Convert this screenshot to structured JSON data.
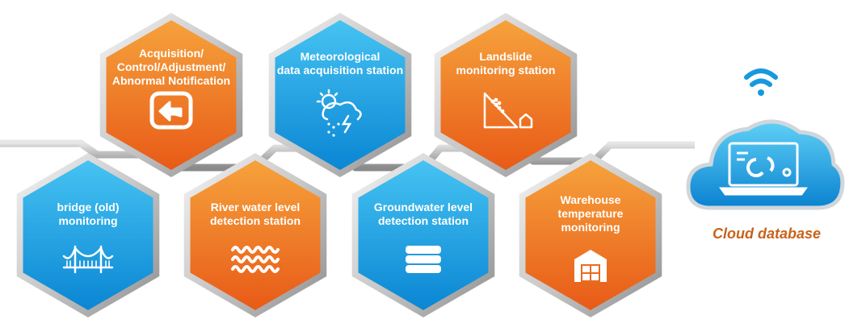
{
  "nodes": [
    {
      "id": "acquisition",
      "lines": [
        "Acquisition/",
        "Control/Adjustment/",
        "Abnormal Notification"
      ],
      "icon": "return-arrow-icon",
      "color": "orange"
    },
    {
      "id": "meteorological",
      "lines": [
        "Meteorological",
        "data acquisition station"
      ],
      "icon": "weather-storm-icon",
      "color": "blue"
    },
    {
      "id": "landslide",
      "lines": [
        "Landslide",
        "monitoring station"
      ],
      "icon": "landslide-icon",
      "color": "orange"
    },
    {
      "id": "bridge",
      "lines": [
        "bridge (old)",
        "monitoring"
      ],
      "icon": "bridge-icon",
      "color": "blue"
    },
    {
      "id": "river",
      "lines": [
        "River water level",
        "detection station"
      ],
      "icon": "water-waves-icon",
      "color": "orange"
    },
    {
      "id": "groundwater",
      "lines": [
        "Groundwater level",
        "detection station"
      ],
      "icon": "layers-stack-icon",
      "color": "blue"
    },
    {
      "id": "warehouse",
      "lines": [
        "Warehouse",
        "temperature",
        "monitoring"
      ],
      "icon": "warehouse-icon",
      "color": "orange"
    }
  ],
  "cloud": {
    "caption": "Cloud database",
    "icon": "cloud-laptop-icon",
    "signal_icon": "wifi-icon"
  },
  "colors": {
    "orange_top": "#f6a23c",
    "orange_bottom": "#e85a17",
    "blue_top": "#46c3f2",
    "blue_bottom": "#0a86d4",
    "rail": "#b9b9b9",
    "caption": "#c9621a"
  }
}
